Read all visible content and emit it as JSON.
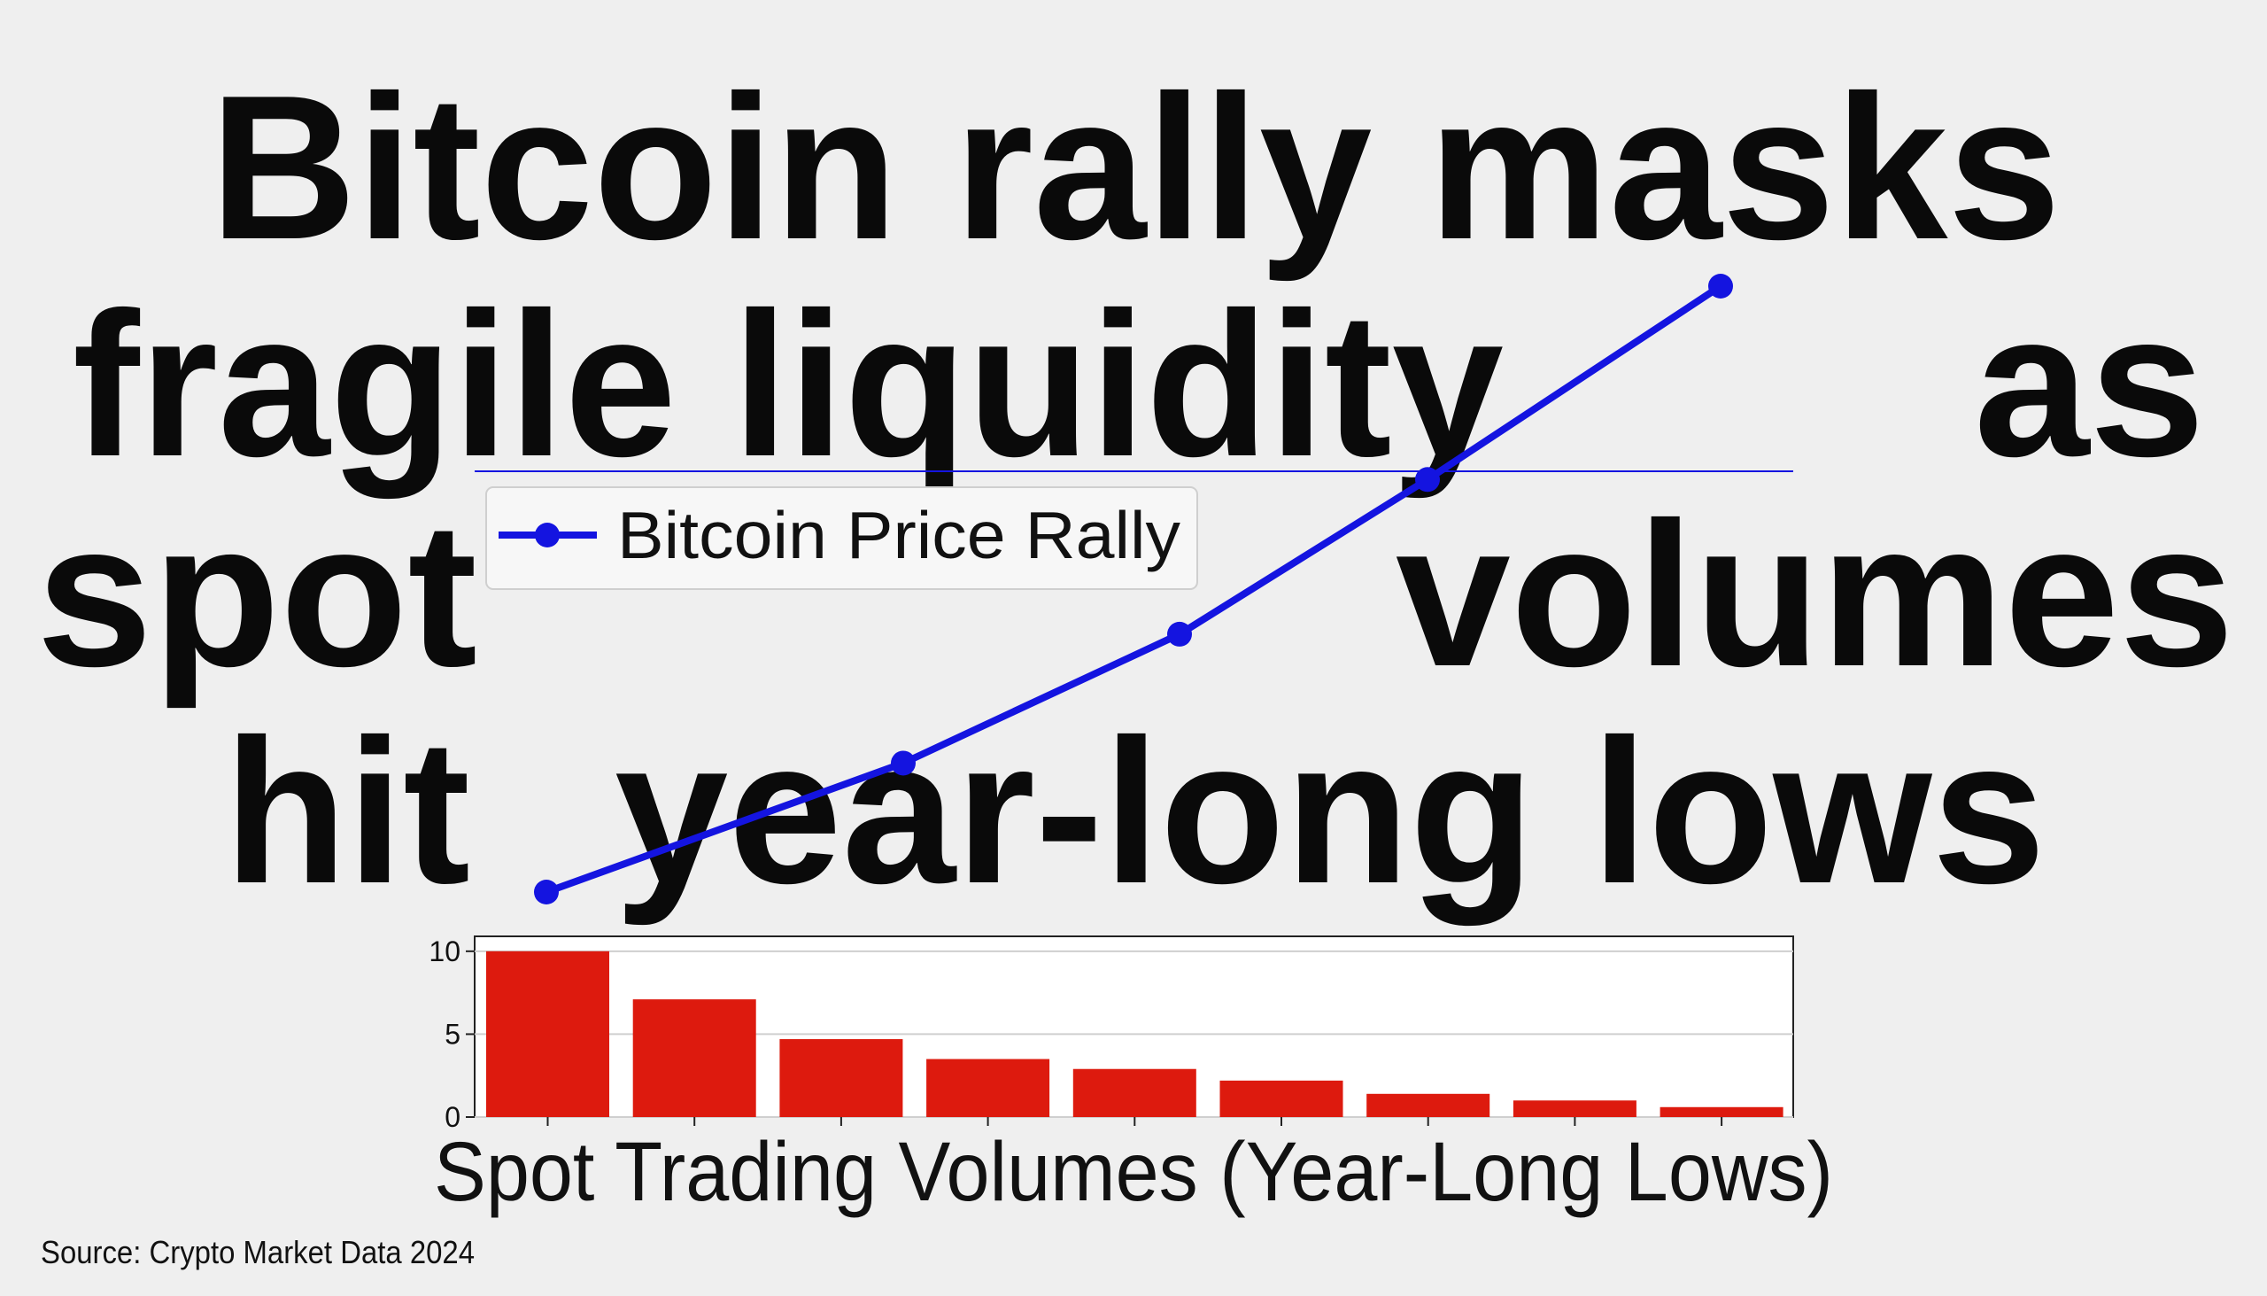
{
  "chart_data": [
    {
      "type": "line",
      "title_parts": [
        "Bitcoin rally masks",
        "fragile liquidity",
        "as",
        "spot",
        "volumes",
        "hit",
        "year-long lows"
      ],
      "series": [
        {
          "name": "Bitcoin Price Rally",
          "color": "#1414e0",
          "values": [
            10,
            20,
            30,
            42,
            57
          ]
        }
      ]
    },
    {
      "type": "bar",
      "xlabel": "Spot Trading Volumes (Year-Long Lows)",
      "categories": [
        null,
        null,
        null,
        null,
        null,
        null,
        null,
        null,
        null
      ],
      "values": [
        10,
        7.1,
        4.7,
        3.5,
        2.9,
        2.2,
        1.4,
        1.0,
        0.6
      ],
      "color": "#dd1a0e",
      "ylim": [
        0,
        10.9
      ],
      "yticks": [
        0,
        5,
        10
      ],
      "grid": true,
      "source": "Source: Crypto Market Data 2024"
    }
  ]
}
